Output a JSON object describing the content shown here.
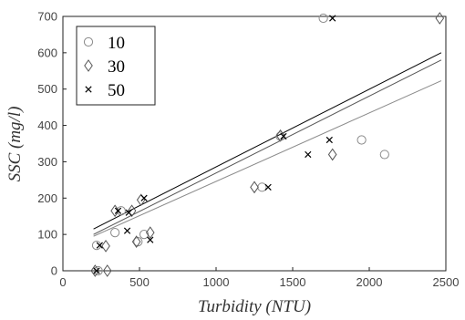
{
  "chart_data": {
    "type": "scatter",
    "title": "",
    "xlabel": "Turbidity (NTU)",
    "ylabel": "SSC (mg/l)",
    "xlim": [
      0,
      2500
    ],
    "ylim": [
      0,
      700
    ],
    "xticks": [
      "0",
      "500",
      "1000",
      "1500",
      "2000",
      "2500"
    ],
    "yticks": [
      "0",
      "100",
      "200",
      "300",
      "400",
      "500",
      "600",
      "700"
    ],
    "grid": false,
    "legend_position": "top-left",
    "series": [
      {
        "name": "10",
        "marker": "circle",
        "color": "#8a8a8a",
        "points": [
          [
            220,
            70
          ],
          [
            230,
            0
          ],
          [
            340,
            105
          ],
          [
            380,
            165
          ],
          [
            490,
            80
          ],
          [
            530,
            100
          ],
          [
            1300,
            230
          ],
          [
            1420,
            370
          ],
          [
            1700,
            695
          ],
          [
            1950,
            360
          ],
          [
            2100,
            320
          ]
        ],
        "fit": [
          [
            200,
            95
          ],
          [
            2470,
            523
          ]
        ]
      },
      {
        "name": "30",
        "marker": "diamond",
        "color": "#555555",
        "points": [
          [
            210,
            0
          ],
          [
            290,
            0
          ],
          [
            280,
            68
          ],
          [
            340,
            165
          ],
          [
            450,
            165
          ],
          [
            480,
            80
          ],
          [
            510,
            195
          ],
          [
            570,
            105
          ],
          [
            1250,
            230
          ],
          [
            1420,
            372
          ],
          [
            1760,
            320
          ],
          [
            2460,
            695
          ]
        ],
        "fit": [
          [
            200,
            100
          ],
          [
            2470,
            580
          ]
        ]
      },
      {
        "name": "50",
        "marker": "cross",
        "color": "#000000",
        "points": [
          [
            220,
            0
          ],
          [
            240,
            70
          ],
          [
            360,
            165
          ],
          [
            420,
            110
          ],
          [
            430,
            160
          ],
          [
            530,
            200
          ],
          [
            570,
            85
          ],
          [
            1340,
            230
          ],
          [
            1440,
            370
          ],
          [
            1600,
            320
          ],
          [
            1740,
            360
          ],
          [
            1760,
            695
          ]
        ],
        "fit": [
          [
            200,
            115
          ],
          [
            2470,
            600
          ]
        ]
      }
    ]
  }
}
